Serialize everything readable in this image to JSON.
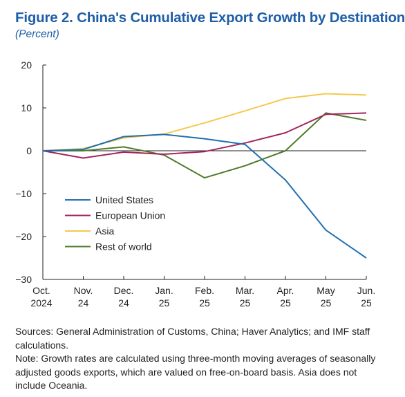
{
  "title": "Figure 2. China's Cumulative Export Growth by Destination",
  "subtitle": "(Percent)",
  "chart_data": {
    "type": "line",
    "categories": [
      [
        "Oct.",
        "2024"
      ],
      [
        "Nov.",
        "24"
      ],
      [
        "Dec.",
        "24"
      ],
      [
        "Jan.",
        "25"
      ],
      [
        "Feb.",
        "25"
      ],
      [
        "Mar.",
        "25"
      ],
      [
        "Apr.",
        "25"
      ],
      [
        "May",
        "25"
      ],
      [
        "Jun.",
        "25"
      ]
    ],
    "ylim": [
      -30,
      20
    ],
    "yticks": [
      20,
      10,
      0,
      -10,
      -20,
      -30
    ],
    "ytick_labels": [
      "20",
      "10",
      "0",
      "−10",
      "−20",
      "−30"
    ],
    "legend_placement": "lower-left",
    "series": [
      {
        "name": "United States",
        "color": "#1f6fb2",
        "values": [
          0,
          0.3,
          3.3,
          3.8,
          2.8,
          1.5,
          -6.8,
          -18.5,
          -25
        ]
      },
      {
        "name": "European Union",
        "color": "#a3245e",
        "values": [
          0,
          -1.7,
          -0.3,
          -0.8,
          -0.2,
          1.8,
          4.2,
          8.5,
          8.8
        ]
      },
      {
        "name": "Asia",
        "color": "#f5c84c",
        "values": [
          0,
          0.5,
          3.0,
          3.9,
          6.5,
          9.3,
          12.2,
          13.3,
          13.0
        ]
      },
      {
        "name": "Rest of world",
        "color": "#4f7b2a",
        "values": [
          0,
          0,
          0.9,
          -1.0,
          -6.3,
          -3.5,
          0,
          8.8,
          7.1
        ]
      }
    ]
  },
  "sources": "Sources: General Administration of Customs, China; Haver Analytics; and IMF staff calculations.",
  "note": "Note: Growth rates are calculated using three-month moving averages of seasonally adjusted goods exports, which are valued on free-on-board basis. Asia does not include Oceania."
}
